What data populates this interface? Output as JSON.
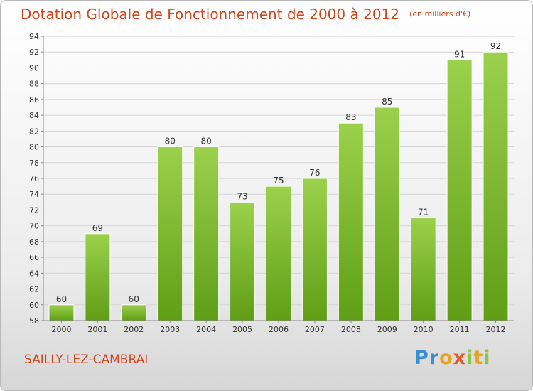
{
  "chart_data": {
    "type": "bar",
    "title": "Dotation Globale de Fonctionnement de 2000 à 2012",
    "unit_note": "(en milliers d'€)",
    "categories": [
      "2000",
      "2001",
      "2002",
      "2003",
      "2004",
      "2005",
      "2006",
      "2007",
      "2008",
      "2009",
      "2010",
      "2011",
      "2012"
    ],
    "values": [
      60,
      69,
      60,
      80,
      80,
      73,
      75,
      76,
      83,
      85,
      71,
      91,
      92
    ],
    "ylim": [
      58,
      94
    ],
    "yticks": [
      58,
      60,
      62,
      64,
      66,
      68,
      70,
      72,
      74,
      76,
      78,
      80,
      82,
      84,
      86,
      88,
      90,
      92,
      94
    ],
    "xlabel": "",
    "ylabel": "",
    "grid": true,
    "bar_color_top": "#9bd14c",
    "bar_color_bottom": "#5f9e16"
  },
  "commune": "SAILLY-LEZ-CAMBRAI",
  "logo": {
    "p1": "Pr",
    "p2": "o",
    "p3": "x",
    "p4": "i",
    "p5": "t",
    "p6": "i"
  }
}
